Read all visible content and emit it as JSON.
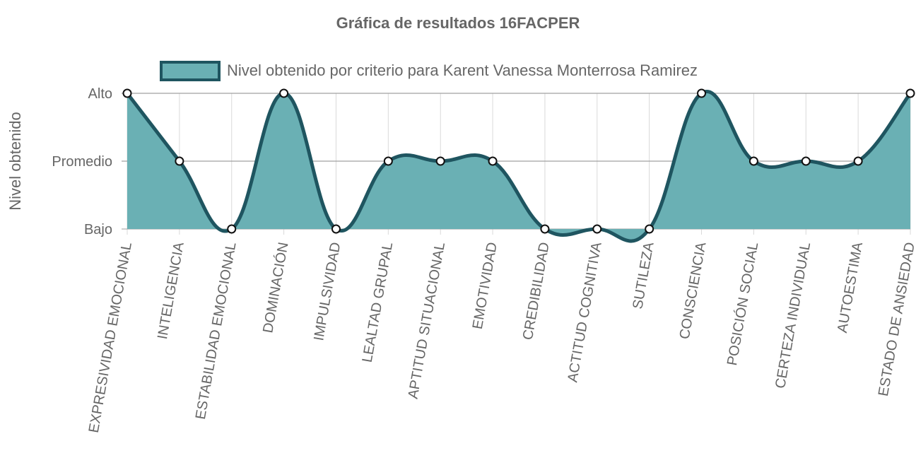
{
  "chart_data": {
    "type": "line",
    "title": "Gráfica de resultados 16FACPER",
    "xlabel": "",
    "ylabel": "Nivel obtenido",
    "categories": [
      "EXPRESIVIDAD EMOCIONAL",
      "INTELIGENCIA",
      "ESTABILIDAD EMOCIONAL",
      "DOMINACIÓN",
      "IMPULSIVIDAD",
      "LEALTAD GRUPAL",
      "APTITUD SITUACIONAL",
      "EMOTIVIDAD",
      "CREDIBILIDAD",
      "ACTITUD COGNITIVA",
      "SUTILEZA",
      "CONSCIENCIA",
      "POSICIÓN SOCIAL",
      "CERTEZA INDIVIDUAL",
      "AUTOESTIMA",
      "ESTADO DE ANSIEDAD"
    ],
    "ytick_labels": [
      "Bajo",
      "Promedio",
      "Alto"
    ],
    "ylim": [
      1,
      3
    ],
    "series": [
      {
        "name": "Nivel obtenido por criterio para Karent Vanessa Monterrosa Ramirez",
        "values": [
          3,
          2,
          1,
          3,
          1,
          2,
          2,
          2,
          1,
          1,
          1,
          3,
          2,
          2,
          2,
          3
        ]
      }
    ],
    "filled": true,
    "smooth": true,
    "grid": true,
    "legend_position": "top",
    "colors": {
      "fill": "#6ab0b4",
      "line": "#1f5560",
      "grid": "#d9d9d9",
      "text": "#666666"
    }
  }
}
